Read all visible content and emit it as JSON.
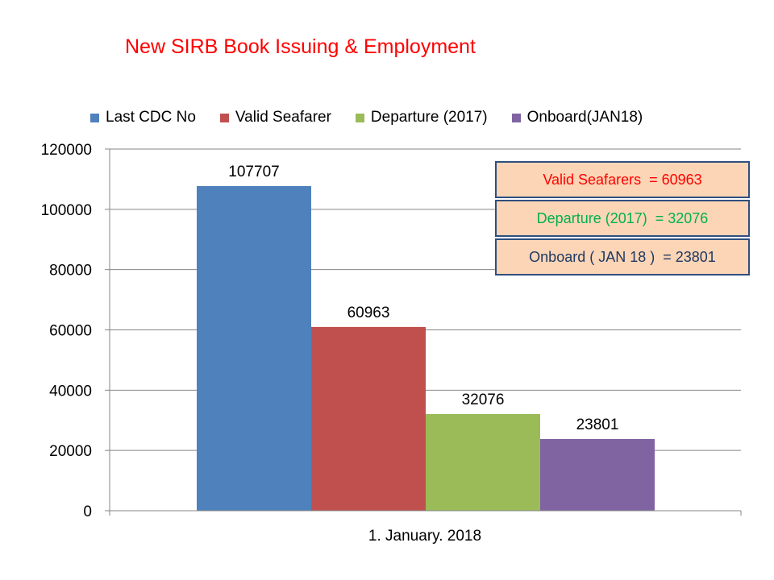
{
  "chart_data": {
    "type": "bar",
    "title": "New SIRB Book Issuing & Employment",
    "categories": [
      "1. January. 2018"
    ],
    "series": [
      {
        "name": "Last CDC No",
        "values": [
          107707
        ],
        "color": "#4f81bd"
      },
      {
        "name": "Valid Seafarer",
        "values": [
          60963
        ],
        "color": "#c0504d"
      },
      {
        "name": "Departure (2017)",
        "values": [
          32076
        ],
        "color": "#9bbb59"
      },
      {
        "name": "Onboard(JAN18)",
        "values": [
          23801
        ],
        "color": "#8064a2"
      }
    ],
    "ylim": [
      0,
      120000
    ],
    "yticks": [
      0,
      20000,
      40000,
      60000,
      80000,
      100000,
      120000
    ],
    "grid": true,
    "legend": "top",
    "data_labels": [
      "107707",
      "60963",
      "32076",
      "23801"
    ]
  },
  "annotations": [
    {
      "text": "Valid Seafarers  = 60963",
      "color": "#ff0000"
    },
    {
      "text": "Departure (2017)  = 32076",
      "color": "#00b050"
    },
    {
      "text": "Onboard ( JAN 18 )  = 23801",
      "color": "#1f3864"
    }
  ]
}
